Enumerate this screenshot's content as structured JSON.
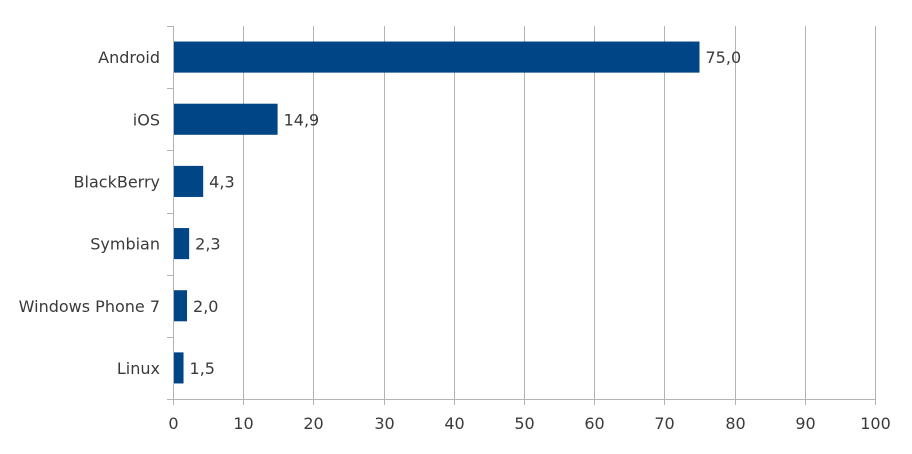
{
  "chart_data": {
    "type": "bar",
    "orientation": "horizontal",
    "title": "",
    "xlabel": "",
    "ylabel": "",
    "categories": [
      "Android",
      "iOS",
      "BlackBerry",
      "Symbian",
      "Windows Phone 7",
      "Linux"
    ],
    "values": [
      75.0,
      14.9,
      4.3,
      2.3,
      2.0,
      1.5
    ],
    "value_labels": [
      "75,0",
      "14,9",
      "4,3",
      "2,3",
      "2,0",
      "1,5"
    ],
    "xlim": [
      0,
      100
    ],
    "xticks": [
      0,
      10,
      20,
      30,
      40,
      50,
      60,
      70,
      80,
      90,
      100
    ],
    "grid": "vertical",
    "legend": "none",
    "bar_color": "#004586"
  }
}
